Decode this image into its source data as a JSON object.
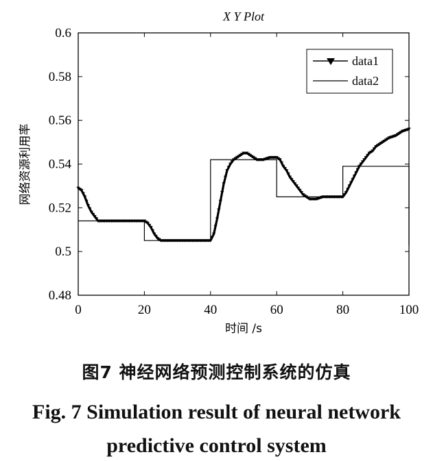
{
  "chart_data": {
    "type": "line",
    "title": "X  Y Plot",
    "xlabel": "时间 /s",
    "ylabel": "网络资源利用率",
    "xlim": [
      0,
      100
    ],
    "ylim": [
      0.48,
      0.6
    ],
    "xticks": [
      "0",
      "20",
      "40",
      "60",
      "80",
      "100"
    ],
    "yticks": [
      "0.48",
      "0.5",
      "0.52",
      "0.54",
      "0.56",
      "0.58",
      "0.6"
    ],
    "legend_position": "top-right",
    "series": [
      {
        "name": "data1",
        "marker": "triangle-down",
        "color": "#000000",
        "x": [
          0,
          1,
          2,
          3,
          4,
          5,
          6,
          7,
          8,
          10,
          12,
          14,
          16,
          18,
          20,
          21,
          22,
          23,
          24,
          25,
          26,
          28,
          30,
          32,
          34,
          36,
          38,
          40,
          41,
          42,
          43,
          44,
          45,
          46,
          47,
          48,
          49,
          50,
          51,
          52,
          53,
          54,
          56,
          58,
          60,
          61,
          62,
          63,
          64,
          65,
          66,
          67,
          68,
          69,
          70,
          72,
          74,
          76,
          78,
          80,
          81,
          82,
          83,
          84,
          85,
          86,
          87,
          88,
          89,
          90,
          92,
          94,
          96,
          98,
          100
        ],
        "y": [
          0.529,
          0.528,
          0.525,
          0.521,
          0.518,
          0.516,
          0.514,
          0.514,
          0.514,
          0.514,
          0.514,
          0.514,
          0.514,
          0.514,
          0.514,
          0.513,
          0.511,
          0.508,
          0.506,
          0.505,
          0.505,
          0.505,
          0.505,
          0.505,
          0.505,
          0.505,
          0.505,
          0.505,
          0.508,
          0.515,
          0.523,
          0.531,
          0.537,
          0.54,
          0.542,
          0.543,
          0.544,
          0.545,
          0.545,
          0.544,
          0.543,
          0.542,
          0.542,
          0.543,
          0.543,
          0.542,
          0.539,
          0.537,
          0.534,
          0.532,
          0.53,
          0.528,
          0.526,
          0.525,
          0.524,
          0.524,
          0.525,
          0.525,
          0.525,
          0.525,
          0.527,
          0.53,
          0.533,
          0.536,
          0.539,
          0.541,
          0.543,
          0.545,
          0.546,
          0.548,
          0.55,
          0.552,
          0.553,
          0.555,
          0.556
        ]
      },
      {
        "name": "data2",
        "marker": "none",
        "color": "#000000",
        "x": [
          0,
          20,
          20,
          40,
          40,
          60,
          60,
          80,
          80,
          100,
          100
        ],
        "y": [
          0.514,
          0.514,
          0.505,
          0.505,
          0.542,
          0.542,
          0.525,
          0.525,
          0.539,
          0.539,
          0.503
        ]
      }
    ]
  },
  "caption": {
    "cn": "图7  神经网络预测控制系统的仿真",
    "en_line1": "Fig. 7  Simulation result of neural network",
    "en_line2": "predictive control system"
  }
}
